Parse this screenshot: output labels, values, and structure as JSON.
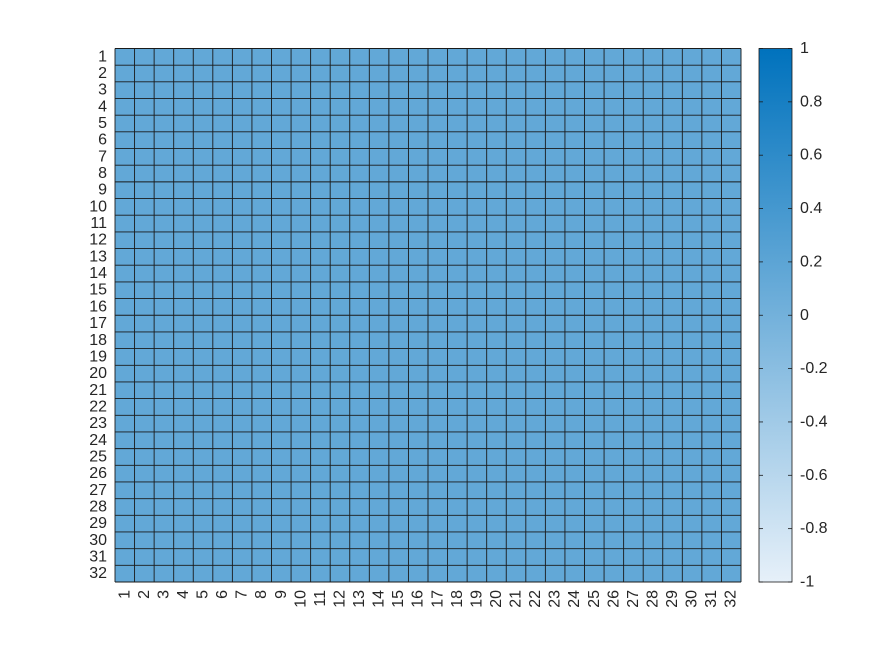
{
  "chart_data": {
    "type": "heatmap",
    "title": "",
    "xlabel": "",
    "ylabel": "",
    "x_categories": [
      "1",
      "2",
      "3",
      "4",
      "5",
      "6",
      "7",
      "8",
      "9",
      "10",
      "11",
      "12",
      "13",
      "14",
      "15",
      "16",
      "17",
      "18",
      "19",
      "20",
      "21",
      "22",
      "23",
      "24",
      "25",
      "26",
      "27",
      "28",
      "29",
      "30",
      "31",
      "32"
    ],
    "y_categories": [
      "1",
      "2",
      "3",
      "4",
      "5",
      "6",
      "7",
      "8",
      "9",
      "10",
      "11",
      "12",
      "13",
      "14",
      "15",
      "16",
      "17",
      "18",
      "19",
      "20",
      "21",
      "22",
      "23",
      "24",
      "25",
      "26",
      "27",
      "28",
      "29",
      "30",
      "31",
      "32"
    ],
    "fill_value": 0.15,
    "colorbar": {
      "limits": [
        -1,
        1
      ],
      "ticks": [
        -1,
        -0.8,
        -0.6,
        -0.4,
        -0.2,
        0,
        0.2,
        0.4,
        0.6,
        0.8,
        1
      ],
      "tick_labels": [
        "-1",
        "-0.8",
        "-0.6",
        "-0.4",
        "-0.2",
        "0",
        "0.2",
        "0.4",
        "0.6",
        "0.8",
        "1"
      ],
      "color_low": "#e6f0f9",
      "color_high": "#0072bd",
      "placement": "right"
    },
    "grid": true,
    "grid_color": "#1a1a1a"
  }
}
